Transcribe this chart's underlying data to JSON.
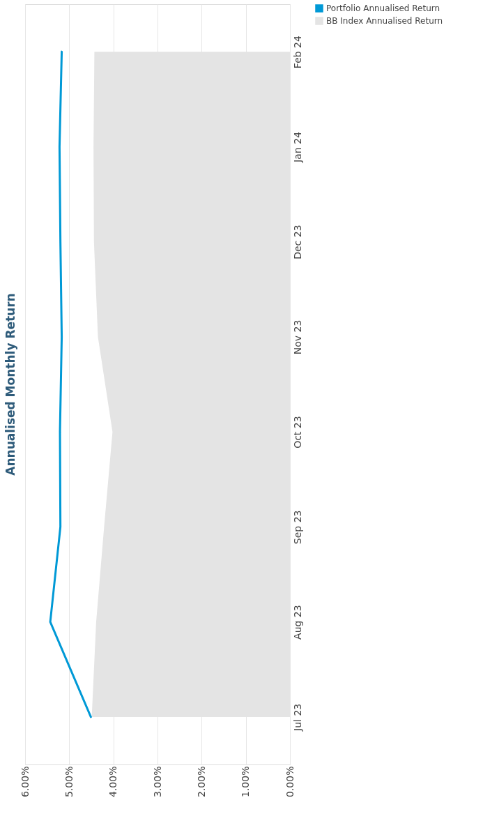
{
  "chart_data": {
    "type": "line",
    "title": "Annualised Monthly Return",
    "orientation": "horizontal",
    "categories": [
      "Feb 24",
      "Jan 24",
      "Dec 23",
      "Nov 23",
      "Oct 23",
      "Sep 23",
      "Aug 23",
      "Jul 23"
    ],
    "series": [
      {
        "name": "Portfolio Annualised Return",
        "color": "#0099d6",
        "values": [
          5.17,
          5.22,
          5.2,
          5.17,
          5.21,
          5.2,
          5.43,
          4.51
        ]
      },
      {
        "name": "BB Index Annualised Return",
        "type": "area",
        "color": "#e4e4e4",
        "values": [
          4.43,
          4.45,
          4.44,
          4.35,
          4.02,
          4.21,
          4.39,
          4.49
        ]
      }
    ],
    "xlim": [
      6,
      0
    ],
    "xticks": [
      {
        "value": 0,
        "label": "0.00%"
      },
      {
        "value": 1,
        "label": "1.00%"
      },
      {
        "value": 2,
        "label": "2.00%"
      },
      {
        "value": 3,
        "label": "3.00%"
      },
      {
        "value": 4,
        "label": "4.00%"
      },
      {
        "value": 5,
        "label": "5.00%"
      },
      {
        "value": 6,
        "label": "6.00%"
      }
    ],
    "grid": "x",
    "legend": "right"
  }
}
